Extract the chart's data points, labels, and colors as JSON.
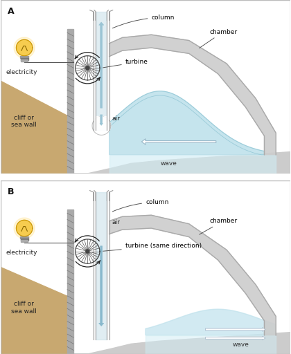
{
  "bg_color": "#ffffff",
  "border_color": "#bbbbbb",
  "cliff_color": "#c8a870",
  "wall_color": "#aaaaaa",
  "wall_dark": "#888888",
  "column_fill": "#c8dfe8",
  "wave_fill_A": "#a8d4e0",
  "wave_fill_B": "#b8dce8",
  "wave_bg": "#d0ecf4",
  "chamber_fill": "#cccccc",
  "ground_color": "#cccccc",
  "arrow_up_color": "#9ac4d4",
  "arrow_dn_color": "#88b8cc",
  "label_A": "A",
  "label_B": "B",
  "label_column": "column",
  "label_turbine_A": "turbine",
  "label_turbine_B": "turbine (same direction)",
  "label_chamber": "chamber",
  "label_air_A": "air",
  "label_air_B": "air",
  "label_wave_A": "wave",
  "label_wave_B": "wave",
  "label_electricity": "electricity",
  "label_cliff": "cliff or\nsea wall",
  "fs": 6.5
}
